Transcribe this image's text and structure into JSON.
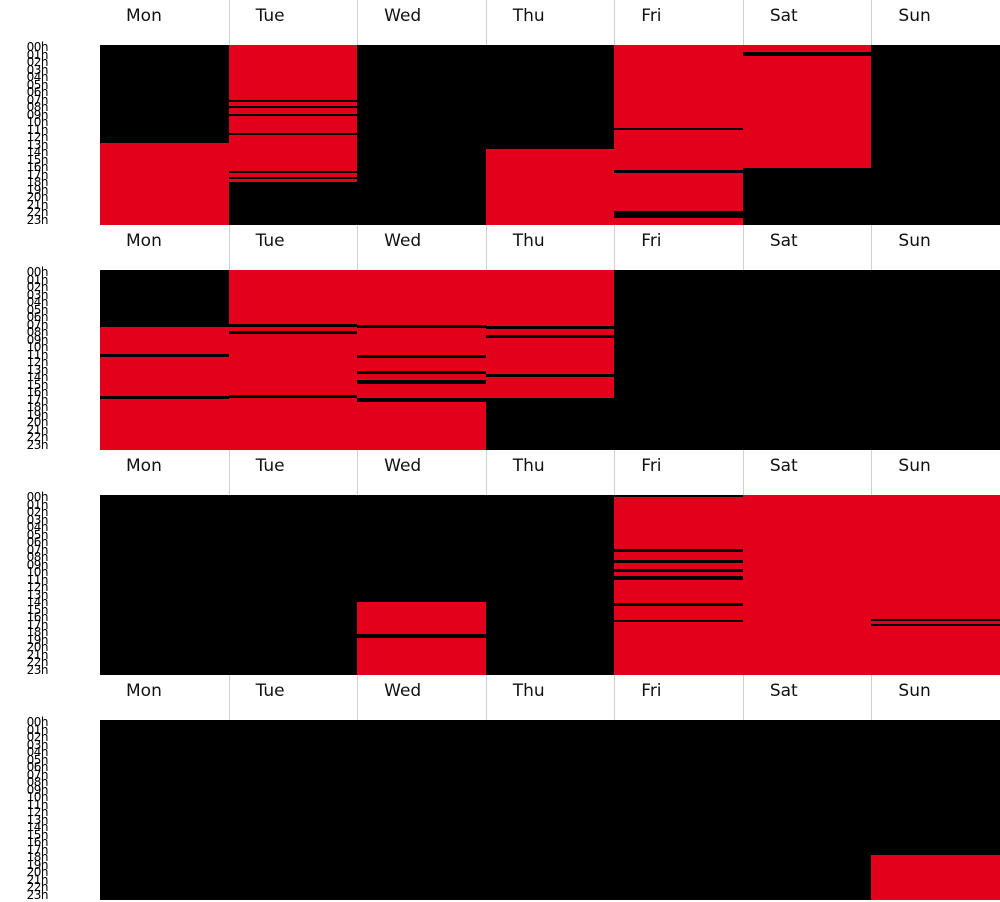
{
  "days": [
    "Mon",
    "Tue",
    "Wed",
    "Thu",
    "Fri",
    "Sat",
    "Sun"
  ],
  "hours": [
    "00h",
    "01h",
    "02h",
    "03h",
    "04h",
    "05h",
    "06h",
    "07h",
    "08h",
    "09h",
    "10h",
    "11h",
    "12h",
    "13h",
    "14h",
    "15h",
    "16h",
    "17h",
    "18h",
    "19h",
    "20h",
    "21h",
    "22h",
    "23h"
  ],
  "colors": {
    "active": "#e2001a",
    "inactive": "#000000"
  },
  "weeks": [
    {
      "columns": [
        [
          [
            13.0,
            24.0
          ]
        ],
        [
          [
            0.0,
            7.3
          ],
          [
            7.6,
            8.1
          ],
          [
            8.4,
            9.2
          ],
          [
            9.5,
            11.7
          ],
          [
            12.0,
            16.8
          ],
          [
            17.1,
            17.6
          ],
          [
            17.8,
            18.3
          ]
        ],
        [],
        [
          [
            13.8,
            24.0
          ]
        ],
        [
          [
            0.0,
            11.0
          ],
          [
            11.3,
            16.7
          ],
          [
            17.1,
            22.1
          ],
          [
            23.0,
            24.0
          ]
        ],
        [
          [
            0.0,
            0.9
          ],
          [
            1.4,
            16.4
          ]
        ],
        []
      ]
    },
    {
      "columns": [
        [
          [
            7.6,
            11.2
          ],
          [
            11.6,
            16.8
          ],
          [
            17.2,
            24.0
          ]
        ],
        [
          [
            0.0,
            7.2
          ],
          [
            7.6,
            8.1
          ],
          [
            8.5,
            16.7
          ],
          [
            17.1,
            24.0
          ]
        ],
        [
          [
            0.0,
            7.3
          ],
          [
            7.7,
            11.3
          ],
          [
            11.7,
            13.4
          ],
          [
            13.8,
            14.6
          ],
          [
            15.2,
            17.1
          ],
          [
            17.6,
            24.0
          ]
        ],
        [
          [
            0.0,
            7.4
          ],
          [
            7.8,
            8.7
          ],
          [
            9.1,
            13.9
          ],
          [
            14.3,
            17.0
          ]
        ],
        [],
        [],
        []
      ]
    },
    {
      "columns": [
        [],
        [],
        [
          [
            14.2,
            18.5
          ],
          [
            19.0,
            24.0
          ]
        ],
        [],
        [
          [
            0.3,
            7.2
          ],
          [
            7.6,
            8.7
          ],
          [
            9.1,
            9.8
          ],
          [
            10.2,
            10.8
          ],
          [
            11.3,
            14.4
          ],
          [
            14.8,
            16.6
          ],
          [
            16.9,
            24.0
          ]
        ],
        [
          [
            0.0,
            24.0
          ]
        ],
        [
          [
            0.0,
            16.5
          ],
          [
            16.8,
            17.2
          ],
          [
            17.5,
            24.0
          ]
        ]
      ]
    },
    {
      "columns": [
        [],
        [],
        [],
        [],
        [],
        [],
        [
          [
            18.0,
            24.0
          ]
        ]
      ]
    }
  ]
}
